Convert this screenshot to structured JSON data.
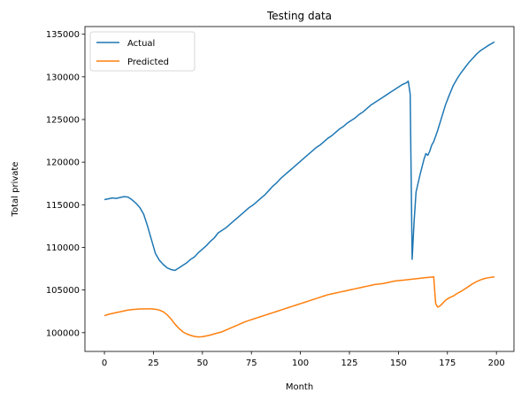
{
  "chart_data": {
    "type": "line",
    "title": "Testing data",
    "xlabel": "Month",
    "ylabel": "Total private",
    "xlim": [
      -9.95,
      208.95
    ],
    "ylim": [
      97800,
      135900
    ],
    "x_ticks": [
      0,
      25,
      50,
      75,
      100,
      125,
      150,
      175,
      200
    ],
    "y_ticks": [
      100000,
      105000,
      110000,
      115000,
      120000,
      125000,
      130000,
      135000
    ],
    "grid": false,
    "legend_position": "upper-left",
    "series": [
      {
        "name": "Actual",
        "color": "#1f77b4",
        "points": [
          [
            0,
            115600
          ],
          [
            2,
            115700
          ],
          [
            4,
            115800
          ],
          [
            6,
            115750
          ],
          [
            8,
            115850
          ],
          [
            10,
            115950
          ],
          [
            12,
            115900
          ],
          [
            14,
            115600
          ],
          [
            16,
            115200
          ],
          [
            18,
            114700
          ],
          [
            20,
            113900
          ],
          [
            22,
            112500
          ],
          [
            24,
            110900
          ],
          [
            26,
            109300
          ],
          [
            28,
            108500
          ],
          [
            30,
            108000
          ],
          [
            32,
            107600
          ],
          [
            34,
            107400
          ],
          [
            36,
            107300
          ],
          [
            38,
            107600
          ],
          [
            40,
            107900
          ],
          [
            42,
            108200
          ],
          [
            44,
            108600
          ],
          [
            46,
            108900
          ],
          [
            48,
            109400
          ],
          [
            50,
            109800
          ],
          [
            52,
            110200
          ],
          [
            54,
            110700
          ],
          [
            56,
            111100
          ],
          [
            58,
            111700
          ],
          [
            60,
            112000
          ],
          [
            62,
            112300
          ],
          [
            64,
            112700
          ],
          [
            66,
            113100
          ],
          [
            68,
            113500
          ],
          [
            70,
            113900
          ],
          [
            72,
            114300
          ],
          [
            74,
            114700
          ],
          [
            76,
            115000
          ],
          [
            78,
            115400
          ],
          [
            80,
            115800
          ],
          [
            82,
            116200
          ],
          [
            84,
            116700
          ],
          [
            86,
            117200
          ],
          [
            88,
            117600
          ],
          [
            90,
            118100
          ],
          [
            92,
            118500
          ],
          [
            94,
            118900
          ],
          [
            96,
            119300
          ],
          [
            98,
            119700
          ],
          [
            100,
            120100
          ],
          [
            102,
            120500
          ],
          [
            104,
            120900
          ],
          [
            106,
            121300
          ],
          [
            108,
            121700
          ],
          [
            110,
            122000
          ],
          [
            112,
            122400
          ],
          [
            114,
            122800
          ],
          [
            116,
            123100
          ],
          [
            118,
            123500
          ],
          [
            120,
            123900
          ],
          [
            122,
            124200
          ],
          [
            124,
            124600
          ],
          [
            126,
            124900
          ],
          [
            128,
            125200
          ],
          [
            130,
            125600
          ],
          [
            132,
            125900
          ],
          [
            134,
            126300
          ],
          [
            136,
            126700
          ],
          [
            138,
            127000
          ],
          [
            140,
            127300
          ],
          [
            142,
            127600
          ],
          [
            144,
            127900
          ],
          [
            146,
            128200
          ],
          [
            148,
            128500
          ],
          [
            150,
            128800
          ],
          [
            152,
            129100
          ],
          [
            154,
            129300
          ],
          [
            155,
            129500
          ],
          [
            156,
            128000
          ],
          [
            157,
            108600
          ],
          [
            158,
            113000
          ],
          [
            159,
            116500
          ],
          [
            161,
            118500
          ],
          [
            163,
            120300
          ],
          [
            164,
            121000
          ],
          [
            165,
            120800
          ],
          [
            166,
            121300
          ],
          [
            167,
            122000
          ],
          [
            168,
            122400
          ],
          [
            170,
            123700
          ],
          [
            172,
            125200
          ],
          [
            174,
            126700
          ],
          [
            176,
            127900
          ],
          [
            178,
            129000
          ],
          [
            180,
            129800
          ],
          [
            182,
            130500
          ],
          [
            184,
            131100
          ],
          [
            186,
            131700
          ],
          [
            188,
            132200
          ],
          [
            190,
            132700
          ],
          [
            192,
            133100
          ],
          [
            194,
            133400
          ],
          [
            196,
            133700
          ],
          [
            199,
            134100
          ]
        ]
      },
      {
        "name": "Predicted",
        "color": "#ff7f0e",
        "points": [
          [
            0,
            102000
          ],
          [
            2,
            102150
          ],
          [
            4,
            102250
          ],
          [
            6,
            102350
          ],
          [
            8,
            102450
          ],
          [
            10,
            102550
          ],
          [
            12,
            102650
          ],
          [
            14,
            102700
          ],
          [
            16,
            102750
          ],
          [
            18,
            102780
          ],
          [
            20,
            102780
          ],
          [
            22,
            102800
          ],
          [
            24,
            102800
          ],
          [
            26,
            102750
          ],
          [
            28,
            102650
          ],
          [
            30,
            102450
          ],
          [
            32,
            102100
          ],
          [
            34,
            101600
          ],
          [
            36,
            101000
          ],
          [
            38,
            100500
          ],
          [
            40,
            100100
          ],
          [
            42,
            99850
          ],
          [
            44,
            99680
          ],
          [
            46,
            99550
          ],
          [
            48,
            99500
          ],
          [
            50,
            99530
          ],
          [
            52,
            99620
          ],
          [
            54,
            99720
          ],
          [
            56,
            99850
          ],
          [
            58,
            99980
          ],
          [
            60,
            100100
          ],
          [
            62,
            100300
          ],
          [
            64,
            100500
          ],
          [
            66,
            100700
          ],
          [
            68,
            100900
          ],
          [
            70,
            101100
          ],
          [
            72,
            101300
          ],
          [
            74,
            101450
          ],
          [
            76,
            101600
          ],
          [
            78,
            101750
          ],
          [
            80,
            101900
          ],
          [
            82,
            102050
          ],
          [
            84,
            102200
          ],
          [
            86,
            102350
          ],
          [
            88,
            102500
          ],
          [
            90,
            102650
          ],
          [
            92,
            102800
          ],
          [
            94,
            102950
          ],
          [
            96,
            103100
          ],
          [
            98,
            103250
          ],
          [
            100,
            103400
          ],
          [
            102,
            103550
          ],
          [
            104,
            103700
          ],
          [
            106,
            103850
          ],
          [
            108,
            104000
          ],
          [
            110,
            104150
          ],
          [
            112,
            104300
          ],
          [
            114,
            104450
          ],
          [
            116,
            104550
          ],
          [
            118,
            104650
          ],
          [
            120,
            104750
          ],
          [
            122,
            104850
          ],
          [
            124,
            104950
          ],
          [
            126,
            105050
          ],
          [
            128,
            105150
          ],
          [
            130,
            105250
          ],
          [
            132,
            105350
          ],
          [
            134,
            105450
          ],
          [
            136,
            105550
          ],
          [
            138,
            105650
          ],
          [
            140,
            105700
          ],
          [
            142,
            105750
          ],
          [
            144,
            105850
          ],
          [
            146,
            105950
          ],
          [
            148,
            106050
          ],
          [
            150,
            106100
          ],
          [
            152,
            106150
          ],
          [
            154,
            106200
          ],
          [
            156,
            106250
          ],
          [
            158,
            106300
          ],
          [
            160,
            106350
          ],
          [
            162,
            106400
          ],
          [
            164,
            106450
          ],
          [
            166,
            106500
          ],
          [
            168,
            106550
          ],
          [
            169,
            103400
          ],
          [
            170,
            103000
          ],
          [
            171,
            103100
          ],
          [
            172,
            103300
          ],
          [
            174,
            103800
          ],
          [
            176,
            104100
          ],
          [
            178,
            104300
          ],
          [
            180,
            104600
          ],
          [
            182,
            104850
          ],
          [
            184,
            105150
          ],
          [
            186,
            105450
          ],
          [
            188,
            105750
          ],
          [
            190,
            106000
          ],
          [
            192,
            106200
          ],
          [
            194,
            106350
          ],
          [
            196,
            106450
          ],
          [
            199,
            106550
          ]
        ]
      }
    ]
  }
}
